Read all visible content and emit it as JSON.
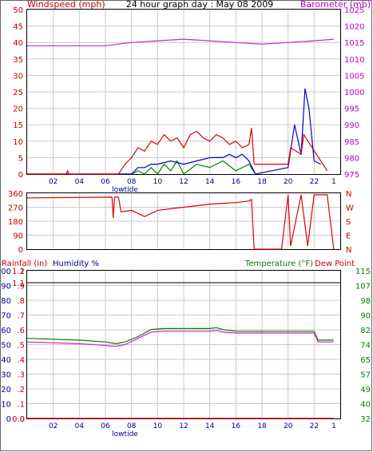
{
  "chart_data": [
    {
      "type": "line",
      "title": "24 hour graph day : May 08 2009",
      "left_label": "Windspeed (mph)",
      "right_label": "Barometer (mb)",
      "x_ticks": [
        "02",
        "04",
        "06",
        "08",
        "10",
        "12",
        "14",
        "16",
        "18",
        "20",
        "22",
        "1"
      ],
      "x_annotation": "lowtide",
      "left_ticks": [
        "0",
        "5",
        "10",
        "15",
        "20",
        "25",
        "30",
        "35",
        "40",
        "45",
        "50"
      ],
      "right_ticks": [
        "975",
        "980",
        "985",
        "990",
        "995",
        "1000",
        "1005",
        "1010",
        "1015",
        "1020",
        "1025"
      ],
      "ylim": [
        0,
        50
      ],
      "right_ylim": [
        975,
        1025
      ],
      "grid": true,
      "colors": {
        "wind_gust": "#e00000",
        "wind_avg": "#0000c0",
        "wind_low": "#008000",
        "barometer": "#d020d0",
        "axis_left": "#c00000",
        "axis_right": "#c000c0"
      },
      "series": [
        {
          "name": "Barometer",
          "axis": "right",
          "x": [
            0,
            2,
            4,
            6,
            8,
            10,
            12,
            14,
            16,
            18,
            20,
            22,
            23.5
          ],
          "values": [
            1014,
            1014,
            1014,
            1014,
            1015,
            1015.5,
            1016,
            1015.5,
            1015,
            1014.5,
            1015,
            1015.5,
            1016
          ]
        },
        {
          "axis": "left",
          "x": [
            0,
            3,
            3.1,
            3.2,
            7,
            7.5,
            8,
            8.5,
            9,
            9.5,
            10,
            10.5,
            11,
            11.5,
            12,
            12.5,
            13,
            13.5,
            14,
            14.5,
            15,
            15.5,
            16,
            16.5,
            17,
            17.2,
            17.4,
            20,
            20.2,
            21,
            21.2,
            22.5,
            23
          ],
          "values": [
            0,
            0,
            1,
            0,
            0,
            3,
            5,
            8,
            7,
            10,
            9,
            12,
            10,
            11,
            8,
            12,
            13,
            11,
            10,
            12,
            11,
            9,
            10,
            8,
            9,
            14,
            3,
            3,
            8,
            6,
            12,
            4,
            1
          ]
        },
        {
          "axis": "left",
          "x": [
            0,
            8,
            8.5,
            9,
            9.5,
            10,
            11,
            12,
            13,
            14,
            15,
            15.5,
            16,
            16.5,
            17,
            17.5,
            20,
            20.5,
            21,
            21.3,
            21.6,
            22,
            22.5
          ],
          "values": [
            0,
            0,
            2,
            2,
            3,
            3,
            4,
            3,
            4,
            5,
            5,
            6,
            5,
            6,
            4,
            0,
            2,
            15,
            6,
            26,
            20,
            4,
            3
          ]
        },
        {
          "axis": "left",
          "x": [
            0,
            8,
            8.5,
            9,
            9.5,
            10,
            10.5,
            11,
            11.5,
            12,
            13,
            14,
            15,
            16,
            17,
            17.5
          ],
          "values": [
            0,
            0,
            1,
            0,
            2,
            0,
            3,
            1,
            4,
            0,
            3,
            2,
            4,
            1,
            3,
            0
          ]
        }
      ]
    },
    {
      "type": "line",
      "left_ticks": [
        "0",
        "90",
        "180",
        "270",
        "360"
      ],
      "right_ticks": [
        "N",
        "E",
        "S",
        "W",
        "N"
      ],
      "x_ticks": [],
      "ylim": [
        0,
        360
      ],
      "grid": true,
      "colors": {
        "wind_dir": "#e00000"
      },
      "series": [
        {
          "axis": "left",
          "x": [
            0,
            6.5,
            6.6,
            6.7,
            7,
            7.2,
            8,
            9,
            10,
            11,
            12,
            13,
            14,
            15,
            16,
            17,
            17.2,
            17.4,
            19.5,
            20,
            20.2,
            21,
            21.5,
            22,
            23,
            23.5
          ],
          "values": [
            330,
            335,
            200,
            335,
            335,
            240,
            250,
            210,
            250,
            260,
            270,
            280,
            290,
            295,
            300,
            310,
            320,
            0,
            0,
            350,
            20,
            350,
            20,
            350,
            350,
            0
          ]
        }
      ]
    },
    {
      "type": "line",
      "left_label_1": "Rainfall (in)",
      "left_label_2": "Humidity %",
      "right_label_1": "Temperature (°F)",
      "right_label_2": "Dew Point",
      "x_ticks": [
        "02",
        "04",
        "06",
        "08",
        "10",
        "12",
        "14",
        "16",
        "18",
        "20",
        "22",
        "1"
      ],
      "x_annotation": "lowtide",
      "rain_ticks": [
        "0",
        ".1",
        ".2",
        ".3",
        ".4",
        ".5",
        ".6",
        ".7",
        ".8",
        ".9",
        "1"
      ],
      "hum_ticks": [
        "0",
        "10",
        "20",
        "30",
        "40",
        "50",
        "60",
        "70",
        "80",
        "90",
        "100"
      ],
      "overlay_ticks": [
        "0.0",
        "1.1",
        "1.2"
      ],
      "right_ticks": [
        "32",
        "40",
        "49",
        "57",
        "65",
        "74",
        "82",
        "90",
        "98",
        "107",
        "115"
      ],
      "ylim": [
        0,
        100
      ],
      "right_ylim": [
        32,
        115
      ],
      "grid": true,
      "colors": {
        "temp": "#008000",
        "dew": "#d020d0",
        "rain": "#c00000",
        "axis_rain": "#c00000",
        "axis_hum": "#000090",
        "axis_temp": "#008000"
      },
      "series": [
        {
          "name": "Temperature",
          "axis": "right",
          "x": [
            0,
            4,
            6,
            6.8,
            7.5,
            8.5,
            9.5,
            10.5,
            12,
            13,
            14,
            14.5,
            15,
            16,
            17,
            18,
            20,
            22,
            22.3,
            23.5
          ],
          "values": [
            77,
            76,
            75,
            74,
            75,
            78,
            82,
            82.5,
            82.5,
            82.5,
            82.5,
            83,
            82,
            81,
            81,
            81,
            81,
            81,
            76,
            76
          ]
        },
        {
          "name": "Dew Point",
          "axis": "right",
          "x": [
            0,
            4,
            6,
            6.8,
            7.5,
            8.5,
            9.5,
            10.5,
            12,
            13,
            14,
            14.5,
            15,
            16,
            17,
            18,
            20,
            22,
            22.3,
            23.5
          ],
          "values": [
            75,
            74,
            73,
            72.5,
            73.5,
            77,
            80.5,
            81,
            81,
            81,
            81,
            81.5,
            80.5,
            80,
            80,
            80,
            80,
            80,
            75,
            75
          ]
        },
        {
          "name": "Rainfall",
          "axis": "left",
          "x": [
            0,
            23.5
          ],
          "values": [
            0,
            0
          ]
        }
      ]
    }
  ]
}
